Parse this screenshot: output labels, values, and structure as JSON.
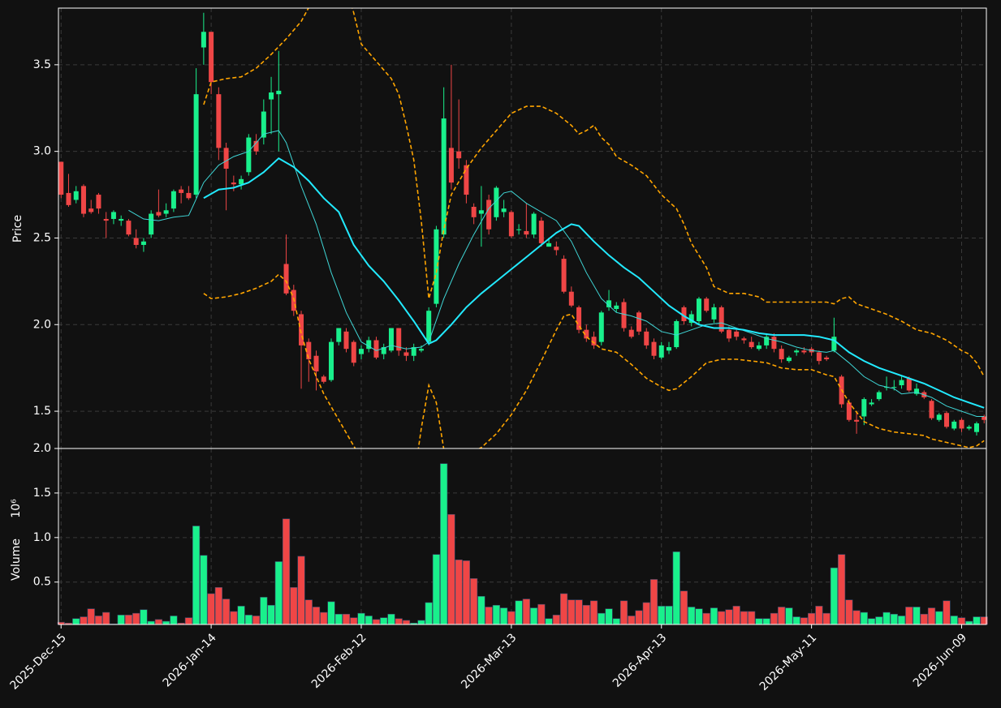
{
  "chart_data": {
    "type": "candlestick",
    "ylabel": "Price",
    "ylim": [
      1.285,
      3.827
    ],
    "yticks": [
      1.5,
      {
        "value": 2.0,
        "label": "2.0"
      },
      2.5,
      {
        "value": 3.0,
        "label": "3.0"
      },
      3.5
    ],
    "xlim": [
      -0.35,
      123.3
    ],
    "xticks": [
      {
        "value": 0,
        "label": "2025-Dec-15"
      },
      {
        "value": 20,
        "label": "2026-Jan-14"
      },
      {
        "value": 40,
        "label": "2026-Feb-12"
      },
      {
        "value": 60,
        "label": "2026-Mar-13"
      },
      {
        "value": 80,
        "label": "2026-Apr-13"
      },
      {
        "value": 100,
        "label": "2026-May-11"
      },
      {
        "value": 120,
        "label": "2026-Jun-09"
      }
    ],
    "grid": true,
    "up_color": "#19f08c",
    "down_color": "#ef4646",
    "open": [
      2.94,
      2.76,
      2.72,
      2.8,
      2.67,
      2.75,
      2.61,
      2.61,
      2.6,
      2.6,
      2.5,
      2.46,
      2.52,
      2.65,
      2.64,
      2.67,
      2.78,
      2.76,
      2.75,
      3.6,
      3.69,
      3.33,
      3.02,
      2.82,
      2.81,
      2.88,
      3.06,
      3.08,
      3.3,
      3.33,
      2.35,
      2.2,
      2.06,
      1.9,
      1.82,
      1.7,
      1.68,
      1.9,
      1.96,
      1.9,
      1.83,
      1.86,
      1.91,
      1.83,
      1.85,
      1.98,
      1.84,
      1.82,
      1.85,
      1.9,
      2.12,
      2.52,
      3.02,
      3.0,
      2.92,
      2.68,
      2.64,
      2.72,
      2.62,
      2.65,
      2.65,
      2.55,
      2.54,
      2.52,
      2.6,
      2.45,
      2.45,
      2.38,
      2.19,
      2.1,
      1.97,
      1.93,
      1.9,
      2.1,
      2.09,
      2.13,
      1.97,
      2.07,
      1.96,
      1.9,
      1.81,
      1.85,
      1.87,
      2.1,
      2.01,
      2.02,
      2.15,
      2.03,
      2.1,
      1.97,
      1.96,
      1.92,
      1.9,
      1.86,
      1.88,
      1.93,
      1.86,
      1.79,
      1.84,
      1.85,
      1.86,
      1.84,
      1.81,
      1.85,
      1.7,
      1.55,
      1.45,
      1.47,
      1.54,
      1.57,
      1.64,
      1.64,
      1.65,
      1.69,
      1.6,
      1.61,
      1.56,
      1.45,
      1.49,
      1.4,
      1.45,
      1.4,
      1.38,
      1.47
    ],
    "high": [
      2.94,
      2.87,
      2.8,
      2.81,
      2.72,
      2.76,
      2.65,
      2.66,
      2.63,
      2.61,
      2.55,
      2.5,
      2.66,
      2.78,
      2.7,
      2.78,
      2.8,
      2.8,
      3.48,
      3.8,
      3.69,
      3.37,
      3.05,
      2.86,
      2.86,
      3.1,
      3.1,
      3.3,
      3.43,
      3.58,
      2.52,
      2.23,
      2.08,
      1.92,
      1.85,
      1.71,
      1.92,
      1.98,
      1.98,
      1.91,
      1.88,
      1.93,
      1.93,
      1.89,
      1.98,
      1.98,
      1.87,
      1.89,
      1.88,
      2.1,
      2.57,
      3.37,
      3.5,
      3.3,
      2.95,
      2.7,
      2.8,
      2.75,
      2.8,
      2.72,
      2.66,
      2.58,
      2.7,
      2.65,
      2.62,
      2.5,
      2.48,
      2.4,
      2.22,
      2.11,
      2.0,
      1.96,
      2.08,
      2.2,
      2.13,
      2.15,
      1.99,
      2.08,
      1.98,
      1.92,
      1.9,
      1.9,
      2.03,
      2.11,
      2.08,
      2.16,
      2.16,
      2.12,
      2.11,
      1.99,
      1.97,
      1.93,
      1.93,
      1.9,
      1.95,
      1.95,
      1.88,
      1.82,
      1.86,
      1.87,
      1.87,
      1.85,
      1.82,
      2.04,
      1.71,
      1.57,
      1.5,
      1.58,
      1.57,
      1.62,
      1.7,
      1.68,
      1.7,
      1.7,
      1.66,
      1.62,
      1.57,
      1.49,
      1.5,
      1.45,
      1.46,
      1.42,
      1.44,
      1.48
    ],
    "low": [
      2.73,
      2.68,
      2.7,
      2.62,
      2.64,
      2.64,
      2.5,
      2.58,
      2.57,
      2.51,
      2.44,
      2.42,
      2.5,
      2.62,
      2.62,
      2.65,
      2.7,
      2.72,
      2.73,
      3.5,
      3.33,
      2.95,
      2.66,
      2.77,
      2.78,
      2.86,
      2.98,
      3.04,
      3.1,
      3.0,
      2.17,
      2.05,
      1.63,
      1.67,
      1.62,
      1.66,
      1.67,
      1.88,
      1.84,
      1.76,
      1.8,
      1.84,
      1.8,
      1.8,
      1.84,
      1.82,
      1.79,
      1.79,
      1.84,
      1.88,
      2.1,
      2.5,
      2.78,
      2.9,
      2.7,
      2.58,
      2.45,
      2.52,
      2.6,
      2.62,
      2.5,
      2.52,
      2.5,
      2.5,
      2.45,
      2.45,
      2.4,
      2.18,
      2.1,
      1.95,
      1.9,
      1.86,
      1.88,
      2.08,
      2.07,
      1.96,
      1.92,
      1.94,
      1.86,
      1.8,
      1.8,
      1.83,
      1.86,
      2.0,
      1.99,
      2.0,
      2.07,
      2.01,
      1.95,
      1.9,
      1.91,
      1.89,
      1.86,
      1.85,
      1.86,
      1.84,
      1.78,
      1.78,
      1.82,
      1.83,
      1.82,
      1.77,
      1.79,
      1.84,
      1.52,
      1.44,
      1.37,
      1.42,
      1.53,
      1.56,
      1.62,
      1.62,
      1.63,
      1.61,
      1.59,
      1.57,
      1.45,
      1.44,
      1.4,
      1.39,
      1.38,
      1.39,
      1.36,
      1.43
    ],
    "close": [
      2.75,
      2.69,
      2.77,
      2.64,
      2.65,
      2.67,
      2.6,
      2.65,
      2.61,
      2.52,
      2.46,
      2.48,
      2.64,
      2.63,
      2.66,
      2.77,
      2.76,
      2.73,
      3.33,
      3.69,
      3.4,
      3.02,
      2.9,
      2.81,
      2.84,
      3.08,
      3.0,
      3.23,
      3.34,
      3.35,
      2.18,
      2.08,
      1.88,
      1.8,
      1.73,
      1.67,
      1.9,
      1.98,
      1.86,
      1.78,
      1.86,
      1.91,
      1.81,
      1.87,
      1.98,
      1.85,
      1.82,
      1.87,
      1.86,
      2.08,
      2.55,
      3.19,
      2.82,
      2.96,
      2.75,
      2.62,
      2.66,
      2.55,
      2.79,
      2.67,
      2.51,
      2.55,
      2.52,
      2.64,
      2.47,
      2.47,
      2.43,
      2.19,
      2.11,
      1.97,
      1.92,
      1.88,
      2.07,
      2.14,
      2.11,
      1.98,
      1.93,
      1.96,
      1.88,
      1.82,
      1.88,
      1.87,
      2.02,
      2.02,
      2.06,
      2.15,
      2.08,
      2.1,
      1.96,
      1.92,
      1.93,
      1.91,
      1.87,
      1.88,
      1.93,
      1.86,
      1.8,
      1.81,
      1.85,
      1.84,
      1.84,
      1.79,
      1.8,
      1.93,
      1.54,
      1.45,
      1.44,
      1.57,
      1.55,
      1.61,
      1.64,
      1.64,
      1.68,
      1.62,
      1.63,
      1.58,
      1.46,
      1.48,
      1.41,
      1.44,
      1.4,
      1.41,
      1.43,
      1.45
    ],
    "overlays": [
      {
        "color": "#3fd6d6",
        "width": 1,
        "dash": false,
        "x": [
          9,
          11,
          13,
          15,
          17,
          19,
          21,
          23,
          25,
          27,
          29,
          30,
          32,
          34,
          36,
          38,
          40,
          42,
          44,
          46,
          48,
          49,
          51,
          53,
          55,
          57,
          59,
          60,
          62,
          64,
          66,
          68,
          70,
          72,
          74,
          76,
          78,
          80,
          82,
          84,
          86,
          88,
          90,
          92,
          94,
          96,
          98,
          100,
          102,
          103,
          105,
          107,
          109,
          111,
          112,
          114,
          116,
          118,
          120,
          122,
          123
        ],
        "values": [
          2.66,
          2.61,
          2.6,
          2.62,
          2.63,
          2.82,
          2.92,
          2.97,
          3.0,
          3.1,
          3.12,
          3.05,
          2.8,
          2.58,
          2.3,
          2.07,
          1.9,
          1.85,
          1.88,
          1.86,
          1.87,
          1.9,
          2.15,
          2.35,
          2.52,
          2.67,
          2.76,
          2.77,
          2.7,
          2.65,
          2.6,
          2.48,
          2.3,
          2.15,
          2.07,
          2.05,
          2.02,
          1.96,
          1.94,
          1.97,
          2.0,
          2.01,
          1.98,
          1.95,
          1.92,
          1.9,
          1.87,
          1.85,
          1.84,
          1.85,
          1.78,
          1.7,
          1.65,
          1.63,
          1.6,
          1.61,
          1.58,
          1.53,
          1.5,
          1.47,
          1.47
        ]
      },
      {
        "color": "#22eaff",
        "width": 2,
        "dash": false,
        "x": [
          19,
          21,
          23,
          25,
          27,
          29,
          31,
          33,
          35,
          37,
          39,
          41,
          43,
          45,
          47,
          49,
          50,
          52,
          54,
          56,
          58,
          60,
          62,
          64,
          66,
          68,
          69,
          71,
          73,
          75,
          77,
          79,
          81,
          83,
          85,
          87,
          89,
          91,
          93,
          95,
          97,
          99,
          101,
          102,
          103,
          105,
          107,
          109,
          111,
          113,
          115,
          117,
          119,
          121,
          123
        ],
        "values": [
          2.73,
          2.78,
          2.79,
          2.82,
          2.88,
          2.96,
          2.91,
          2.83,
          2.73,
          2.65,
          2.46,
          2.34,
          2.25,
          2.14,
          2.02,
          1.89,
          1.91,
          2.0,
          2.1,
          2.18,
          2.25,
          2.32,
          2.39,
          2.46,
          2.53,
          2.58,
          2.57,
          2.48,
          2.4,
          2.33,
          2.27,
          2.19,
          2.11,
          2.05,
          2.0,
          1.98,
          1.98,
          1.97,
          1.95,
          1.94,
          1.94,
          1.94,
          1.93,
          1.92,
          1.91,
          1.84,
          1.79,
          1.75,
          1.72,
          1.69,
          1.66,
          1.62,
          1.58,
          1.55,
          1.52
        ]
      },
      {
        "color": "#ffa500",
        "width": 1.6,
        "dash": true,
        "x": [
          19,
          20,
          22,
          24,
          26,
          28,
          30,
          32,
          33,
          34,
          36,
          38,
          39,
          40,
          42,
          44,
          45,
          46,
          47,
          48,
          49,
          50,
          51,
          52,
          54,
          56,
          58,
          60,
          62,
          64,
          66,
          68,
          69,
          70,
          71,
          72,
          73,
          74,
          76,
          78,
          80,
          82,
          83,
          84,
          86,
          87,
          89,
          91,
          93,
          94,
          96,
          98,
          100,
          102,
          103,
          104,
          105,
          106,
          108,
          110,
          112,
          114,
          116,
          118,
          120,
          121,
          122,
          123
        ],
        "values": [
          3.27,
          3.4,
          3.42,
          3.43,
          3.48,
          3.56,
          3.65,
          3.75,
          3.83,
          3.95,
          4.1,
          3.95,
          3.8,
          3.62,
          3.52,
          3.42,
          3.33,
          3.15,
          2.95,
          2.6,
          2.15,
          2.3,
          2.55,
          2.75,
          2.9,
          3.02,
          3.12,
          3.22,
          3.26,
          3.26,
          3.22,
          3.15,
          3.1,
          3.12,
          3.15,
          3.08,
          3.04,
          2.97,
          2.92,
          2.86,
          2.75,
          2.67,
          2.58,
          2.47,
          2.33,
          2.22,
          2.18,
          2.18,
          2.16,
          2.13,
          2.13,
          2.13,
          2.13,
          2.13,
          2.12,
          2.15,
          2.16,
          2.12,
          2.09,
          2.06,
          2.02,
          1.97,
          1.95,
          1.91,
          1.85,
          1.83,
          1.78,
          1.7
        ]
      },
      {
        "color": "#ffa500",
        "width": 1.6,
        "dash": true,
        "x": [
          19,
          20,
          22,
          24,
          26,
          28,
          29,
          30,
          31,
          32,
          33,
          35,
          37,
          39,
          41,
          43,
          45,
          47,
          48,
          49,
          50,
          51,
          52,
          54,
          56,
          58,
          60,
          62,
          64,
          66,
          67,
          68,
          70,
          72,
          74,
          76,
          78,
          80,
          81,
          82,
          84,
          86,
          88,
          90,
          92,
          94,
          96,
          98,
          100,
          102,
          103,
          105,
          107,
          109,
          111,
          113,
          115,
          116,
          118,
          120,
          121,
          122,
          123
        ],
        "values": [
          2.18,
          2.15,
          2.16,
          2.18,
          2.21,
          2.25,
          2.29,
          2.25,
          2.15,
          1.95,
          1.8,
          1.6,
          1.45,
          1.3,
          1.15,
          1.0,
          0.9,
          1.1,
          1.4,
          1.65,
          1.55,
          1.28,
          1.22,
          1.25,
          1.29,
          1.37,
          1.48,
          1.62,
          1.79,
          1.97,
          2.05,
          2.06,
          1.93,
          1.86,
          1.84,
          1.77,
          1.69,
          1.64,
          1.62,
          1.63,
          1.7,
          1.78,
          1.8,
          1.8,
          1.79,
          1.78,
          1.75,
          1.74,
          1.74,
          1.71,
          1.7,
          1.55,
          1.44,
          1.4,
          1.38,
          1.37,
          1.36,
          1.34,
          1.32,
          1.3,
          1.29,
          1.3,
          1.33
        ]
      }
    ],
    "volume": {
      "ylabel": "Volume",
      "scale_label": "10⁶",
      "ylim": [
        0.024,
        2.0
      ],
      "yticks": [
        0.5,
        {
          "value": 1.0,
          "label": "1.0"
        },
        1.5,
        {
          "value": 2.0,
          "label": "2.0"
        }
      ],
      "values": [
        0.05,
        0.04,
        0.09,
        0.11,
        0.2,
        0.12,
        0.16,
        0.03,
        0.13,
        0.13,
        0.15,
        0.19,
        0.06,
        0.08,
        0.06,
        0.12,
        0.04,
        0.1,
        1.13,
        0.8,
        0.37,
        0.44,
        0.31,
        0.17,
        0.23,
        0.13,
        0.12,
        0.33,
        0.24,
        0.73,
        1.21,
        0.44,
        0.79,
        0.3,
        0.22,
        0.16,
        0.28,
        0.14,
        0.14,
        0.1,
        0.15,
        0.12,
        0.08,
        0.1,
        0.14,
        0.09,
        0.07,
        0.04,
        0.07,
        0.27,
        0.81,
        1.83,
        1.26,
        0.75,
        0.74,
        0.54,
        0.34,
        0.22,
        0.24,
        0.21,
        0.17,
        0.29,
        0.31,
        0.21,
        0.25,
        0.09,
        0.13,
        0.37,
        0.3,
        0.3,
        0.24,
        0.29,
        0.15,
        0.2,
        0.09,
        0.29,
        0.12,
        0.18,
        0.27,
        0.53,
        0.23,
        0.23,
        0.84,
        0.4,
        0.22,
        0.2,
        0.15,
        0.21,
        0.17,
        0.19,
        0.23,
        0.17,
        0.17,
        0.09,
        0.09,
        0.15,
        0.22,
        0.21,
        0.11,
        0.1,
        0.15,
        0.23,
        0.15,
        0.66,
        0.81,
        0.3,
        0.18,
        0.16,
        0.09,
        0.11,
        0.16,
        0.14,
        0.12,
        0.22,
        0.22,
        0.14,
        0.21,
        0.17,
        0.29,
        0.12,
        0.1,
        0.06,
        0.11,
        0.11
      ]
    }
  }
}
